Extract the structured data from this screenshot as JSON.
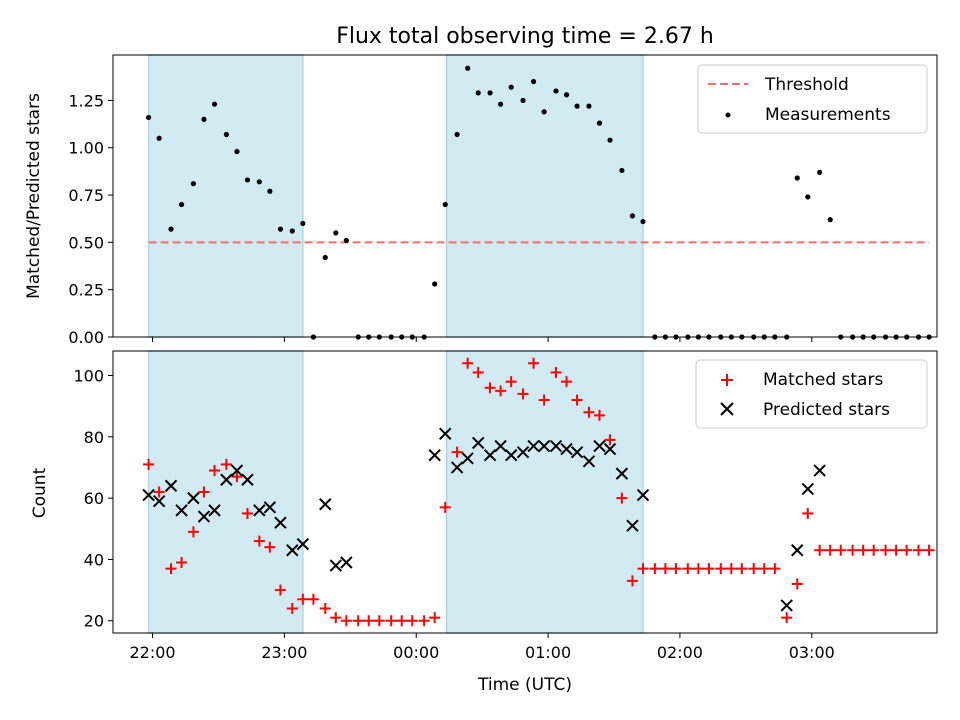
{
  "chart_data": {
    "title": "Flux total observing time = 2.67 h",
    "xlabel": "Time (UTC)",
    "x_unit": "hours since 22:00 UTC",
    "xlim": [
      -0.3,
      5.95
    ],
    "x_ticks": [
      {
        "h": 0,
        "label": "22:00"
      },
      {
        "h": 1,
        "label": "23:00"
      },
      {
        "h": 2,
        "label": "00:00"
      },
      {
        "h": 3,
        "label": "01:00"
      },
      {
        "h": 4,
        "label": "02:00"
      },
      {
        "h": 5,
        "label": "03:00"
      }
    ],
    "shaded_spans": [
      [
        -0.03,
        1.14
      ],
      [
        2.23,
        3.72
      ]
    ],
    "colors": {
      "span": "#add8e6",
      "threshold": "#ff6b6b",
      "matched": "#ff0000",
      "predicted": "#000000",
      "measurement": "#000000"
    },
    "top": {
      "type": "scatter",
      "ylabel": "Matched/Predicted stars",
      "ylim": [
        0,
        1.49
      ],
      "y_ticks": [
        "0.00",
        "0.25",
        "0.50",
        "0.75",
        "1.00",
        "1.25"
      ],
      "threshold": 0.5,
      "legend": {
        "position": "top-right",
        "threshold_label": "Threshold",
        "measurements_label": "Measurements"
      },
      "measurements": [
        [
          -0.03,
          1.16
        ],
        [
          0.05,
          1.05
        ],
        [
          0.14,
          0.57
        ],
        [
          0.22,
          0.7
        ],
        [
          0.31,
          0.81
        ],
        [
          0.39,
          1.15
        ],
        [
          0.47,
          1.23
        ],
        [
          0.56,
          1.07
        ],
        [
          0.64,
          0.98
        ],
        [
          0.72,
          0.83
        ],
        [
          0.81,
          0.82
        ],
        [
          0.89,
          0.77
        ],
        [
          0.97,
          0.57
        ],
        [
          1.06,
          0.56
        ],
        [
          1.14,
          0.6
        ],
        [
          1.22,
          0.0
        ],
        [
          1.31,
          0.42
        ],
        [
          1.39,
          0.55
        ],
        [
          1.47,
          0.51
        ],
        [
          1.56,
          0.0
        ],
        [
          1.64,
          0.0
        ],
        [
          1.72,
          0.0
        ],
        [
          1.81,
          0.0
        ],
        [
          1.89,
          0.0
        ],
        [
          1.97,
          0.0
        ],
        [
          2.06,
          0.0
        ],
        [
          2.14,
          0.28
        ],
        [
          2.22,
          0.7
        ],
        [
          2.31,
          1.07
        ],
        [
          2.39,
          1.42
        ],
        [
          2.47,
          1.29
        ],
        [
          2.56,
          1.29
        ],
        [
          2.64,
          1.23
        ],
        [
          2.72,
          1.32
        ],
        [
          2.81,
          1.25
        ],
        [
          2.89,
          1.35
        ],
        [
          2.97,
          1.19
        ],
        [
          3.06,
          1.3
        ],
        [
          3.14,
          1.28
        ],
        [
          3.22,
          1.22
        ],
        [
          3.31,
          1.22
        ],
        [
          3.39,
          1.13
        ],
        [
          3.47,
          1.04
        ],
        [
          3.56,
          0.88
        ],
        [
          3.64,
          0.64
        ],
        [
          3.72,
          0.61
        ],
        [
          3.81,
          0.0
        ],
        [
          3.89,
          0.0
        ],
        [
          3.97,
          0.0
        ],
        [
          4.06,
          0.0
        ],
        [
          4.14,
          0.0
        ],
        [
          4.22,
          0.0
        ],
        [
          4.31,
          0.0
        ],
        [
          4.39,
          0.0
        ],
        [
          4.47,
          0.0
        ],
        [
          4.56,
          0.0
        ],
        [
          4.64,
          0.0
        ],
        [
          4.72,
          0.0
        ],
        [
          4.81,
          0.0
        ],
        [
          4.89,
          0.84
        ],
        [
          4.97,
          0.74
        ],
        [
          5.06,
          0.87
        ],
        [
          5.14,
          0.62
        ],
        [
          5.22,
          0.0
        ],
        [
          5.31,
          0.0
        ],
        [
          5.39,
          0.0
        ],
        [
          5.47,
          0.0
        ],
        [
          5.56,
          0.0
        ],
        [
          5.64,
          0.0
        ],
        [
          5.72,
          0.0
        ],
        [
          5.81,
          0.0
        ],
        [
          5.89,
          0.0
        ]
      ]
    },
    "bottom": {
      "type": "scatter",
      "ylabel": "Count",
      "ylim": [
        16,
        108
      ],
      "y_ticks": [
        "20",
        "40",
        "60",
        "80",
        "100"
      ],
      "legend": {
        "position": "top-right",
        "matched_label": "Matched stars",
        "predicted_label": "Predicted stars"
      },
      "matched": [
        [
          -0.03,
          71
        ],
        [
          0.05,
          62
        ],
        [
          0.14,
          37
        ],
        [
          0.22,
          39
        ],
        [
          0.31,
          49
        ],
        [
          0.39,
          62
        ],
        [
          0.47,
          69
        ],
        [
          0.56,
          71
        ],
        [
          0.64,
          67
        ],
        [
          0.72,
          55
        ],
        [
          0.81,
          46
        ],
        [
          0.89,
          44
        ],
        [
          0.97,
          30
        ],
        [
          1.06,
          24
        ],
        [
          1.14,
          27
        ],
        [
          1.22,
          27
        ],
        [
          1.31,
          24
        ],
        [
          1.39,
          21
        ],
        [
          1.47,
          20
        ],
        [
          1.56,
          20
        ],
        [
          1.64,
          20
        ],
        [
          1.72,
          20
        ],
        [
          1.81,
          20
        ],
        [
          1.89,
          20
        ],
        [
          1.97,
          20
        ],
        [
          2.06,
          20
        ],
        [
          2.14,
          21
        ],
        [
          2.22,
          57
        ],
        [
          2.31,
          75
        ],
        [
          2.39,
          104
        ],
        [
          2.47,
          101
        ],
        [
          2.56,
          96
        ],
        [
          2.64,
          95
        ],
        [
          2.72,
          98
        ],
        [
          2.81,
          94
        ],
        [
          2.89,
          104
        ],
        [
          2.97,
          92
        ],
        [
          3.06,
          101
        ],
        [
          3.14,
          98
        ],
        [
          3.22,
          92
        ],
        [
          3.31,
          88
        ],
        [
          3.39,
          87
        ],
        [
          3.47,
          79
        ],
        [
          3.56,
          60
        ],
        [
          3.64,
          33
        ],
        [
          3.72,
          37
        ],
        [
          3.81,
          37
        ],
        [
          3.89,
          37
        ],
        [
          3.97,
          37
        ],
        [
          4.06,
          37
        ],
        [
          4.14,
          37
        ],
        [
          4.22,
          37
        ],
        [
          4.31,
          37
        ],
        [
          4.39,
          37
        ],
        [
          4.47,
          37
        ],
        [
          4.56,
          37
        ],
        [
          4.64,
          37
        ],
        [
          4.72,
          37
        ],
        [
          4.81,
          21
        ],
        [
          4.89,
          32
        ],
        [
          4.97,
          55
        ],
        [
          5.06,
          43
        ],
        [
          5.14,
          43
        ],
        [
          5.22,
          43
        ],
        [
          5.31,
          43
        ],
        [
          5.39,
          43
        ],
        [
          5.47,
          43
        ],
        [
          5.56,
          43
        ],
        [
          5.64,
          43
        ],
        [
          5.72,
          43
        ],
        [
          5.81,
          43
        ],
        [
          5.89,
          43
        ]
      ],
      "predicted": [
        [
          -0.03,
          61
        ],
        [
          0.05,
          59
        ],
        [
          0.14,
          64
        ],
        [
          0.22,
          56
        ],
        [
          0.31,
          60
        ],
        [
          0.39,
          54
        ],
        [
          0.47,
          56
        ],
        [
          0.56,
          66
        ],
        [
          0.64,
          69
        ],
        [
          0.72,
          66
        ],
        [
          0.81,
          56
        ],
        [
          0.89,
          57
        ],
        [
          0.97,
          52
        ],
        [
          1.06,
          43
        ],
        [
          1.14,
          45
        ],
        [
          1.31,
          58
        ],
        [
          1.39,
          38
        ],
        [
          1.47,
          39
        ],
        [
          2.14,
          74
        ],
        [
          2.22,
          81
        ],
        [
          2.31,
          70
        ],
        [
          2.39,
          73
        ],
        [
          2.47,
          78
        ],
        [
          2.56,
          74
        ],
        [
          2.64,
          77
        ],
        [
          2.72,
          74
        ],
        [
          2.81,
          75
        ],
        [
          2.89,
          77
        ],
        [
          2.97,
          77
        ],
        [
          3.06,
          77
        ],
        [
          3.14,
          76
        ],
        [
          3.22,
          75
        ],
        [
          3.31,
          72
        ],
        [
          3.39,
          77
        ],
        [
          3.47,
          76
        ],
        [
          3.56,
          68
        ],
        [
          3.64,
          51
        ],
        [
          3.72,
          61
        ],
        [
          4.81,
          25
        ],
        [
          4.89,
          43
        ],
        [
          4.97,
          63
        ],
        [
          5.06,
          69
        ]
      ]
    }
  }
}
